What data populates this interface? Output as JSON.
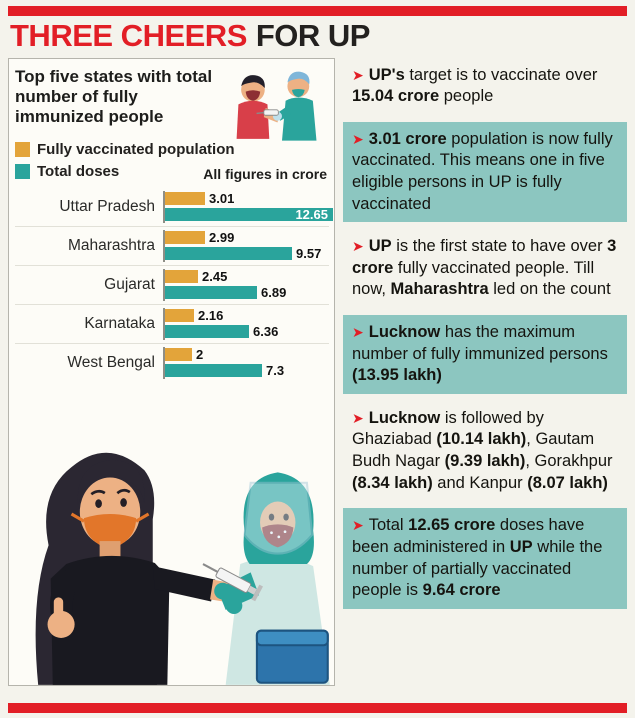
{
  "colors": {
    "red": "#e21e26",
    "teal": "#2aa49c",
    "teal_light": "#8cc6c0",
    "orange": "#e3a43a",
    "dark": "#23211f"
  },
  "header": {
    "title_red": "THREE CHEERS",
    "title_dark": "FOR UP"
  },
  "panel": {
    "title": "Top five states with total number of fully immunized people",
    "note": "All figures in crore",
    "legend": [
      {
        "label": "Fully vaccinated population",
        "color": "#e3a43a"
      },
      {
        "label": "Total doses",
        "color": "#2aa49c"
      }
    ]
  },
  "chart_data": {
    "type": "bar",
    "orientation": "horizontal",
    "title": "Top five states with total number of fully immunized people",
    "unit": "crore",
    "note": "All figures in crore",
    "categories": [
      "Uttar Pradesh",
      "Maharashtra",
      "Gujarat",
      "Karnataka",
      "West Bengal"
    ],
    "series": [
      {
        "name": "Fully vaccinated population",
        "color": "#e3a43a",
        "values": [
          3.01,
          2.99,
          2.45,
          2.16,
          2
        ],
        "labels": [
          "3.01",
          "2.99",
          "2.45",
          "2.16",
          "2"
        ],
        "label_inside": [
          false,
          false,
          false,
          false,
          false
        ]
      },
      {
        "name": "Total doses",
        "color": "#2aa49c",
        "values": [
          12.65,
          9.57,
          6.89,
          6.36,
          7.3
        ],
        "labels": [
          "12.65",
          "9.57",
          "6.89",
          "6.36",
          "7.3"
        ],
        "label_inside": [
          true,
          false,
          false,
          false,
          false
        ]
      }
    ],
    "xlim": [
      0,
      13
    ],
    "grid": false,
    "legend_position": "top-left"
  },
  "bullets_arrow": "➤",
  "bullets": [
    {
      "teal": false,
      "segments": [
        {
          "b": 1,
          "t": "UP's"
        },
        {
          "b": 0,
          "t": " target is to vaccinate over "
        },
        {
          "b": 1,
          "t": "15.04 crore"
        },
        {
          "b": 0,
          "t": " people"
        }
      ]
    },
    {
      "teal": true,
      "segments": [
        {
          "b": 1,
          "t": "3.01 crore"
        },
        {
          "b": 0,
          "t": " population is now fully vaccinated. This means one in five eligible persons in UP is fully vaccinated"
        }
      ]
    },
    {
      "teal": false,
      "segments": [
        {
          "b": 1,
          "t": "UP"
        },
        {
          "b": 0,
          "t": " is the first state to have over "
        },
        {
          "b": 1,
          "t": "3 crore"
        },
        {
          "b": 0,
          "t": " fully vaccinated people. Till now, "
        },
        {
          "b": 1,
          "t": "Maharashtra"
        },
        {
          "b": 0,
          "t": " led on the count"
        }
      ]
    },
    {
      "teal": true,
      "segments": [
        {
          "b": 1,
          "t": "Lucknow"
        },
        {
          "b": 0,
          "t": " has the maximum number of fully immunized persons "
        },
        {
          "b": 1,
          "t": "(13.95 lakh)"
        }
      ]
    },
    {
      "teal": false,
      "segments": [
        {
          "b": 1,
          "t": "Lucknow"
        },
        {
          "b": 0,
          "t": " is followed by Ghaziabad "
        },
        {
          "b": 1,
          "t": "(10.14 lakh)"
        },
        {
          "b": 0,
          "t": ", Gautam Budh Nagar "
        },
        {
          "b": 1,
          "t": "(9.39 lakh)"
        },
        {
          "b": 0,
          "t": ", Gorakhpur "
        },
        {
          "b": 1,
          "t": "(8.34 lakh)"
        },
        {
          "b": 0,
          "t": " and Kanpur "
        },
        {
          "b": 1,
          "t": "(8.07 lakh)"
        }
      ]
    },
    {
      "teal": true,
      "segments": [
        {
          "b": 0,
          "t": "Total "
        },
        {
          "b": 1,
          "t": "12.65 crore"
        },
        {
          "b": 0,
          "t": " doses have been administered in "
        },
        {
          "b": 1,
          "t": "UP"
        },
        {
          "b": 0,
          "t": " while the number of partially vaccinated people is "
        },
        {
          "b": 1,
          "t": "9.64 crore"
        }
      ]
    }
  ]
}
